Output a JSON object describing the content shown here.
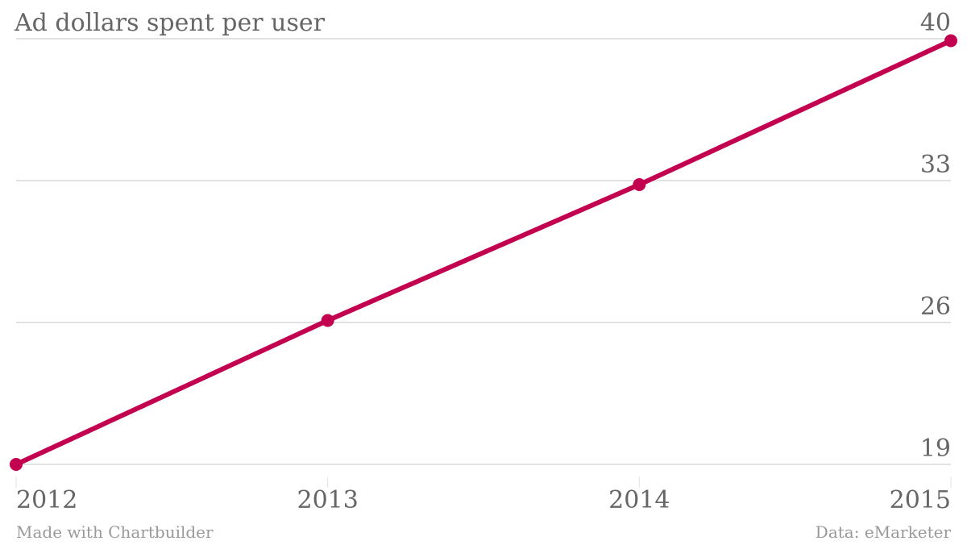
{
  "chart_data": {
    "type": "line",
    "title": "Ad dollars spent per user",
    "xlabel": "",
    "ylabel": "",
    "categories": [
      "2012",
      "2013",
      "2014",
      "2015"
    ],
    "series": [
      {
        "name": "Ad dollars spent per user",
        "values": [
          19.0,
          26.1,
          32.8,
          39.9
        ],
        "color": "#c2004f"
      }
    ],
    "yticks": [
      19,
      26,
      33,
      40
    ],
    "ylim": [
      19,
      40
    ],
    "grid": true,
    "legend": "none"
  },
  "footer": {
    "credit": "Made with Chartbuilder",
    "source": "Data: eMarketer"
  }
}
